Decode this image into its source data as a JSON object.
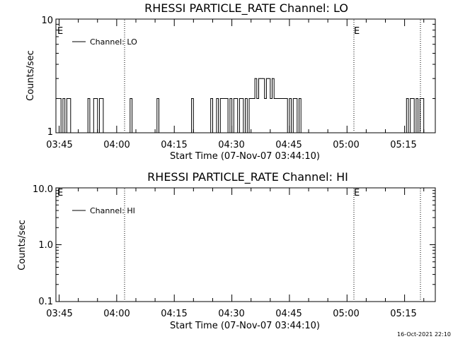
{
  "chart_data": [
    {
      "type": "line",
      "title": "RHESSI PARTICLE_RATE Channel: LO",
      "xlabel": "Start Time (07-Nov-07 03:44:10)",
      "ylabel": "Counts/sec",
      "yscale": "log",
      "ylim": [
        1,
        10
      ],
      "xlim": [
        "03:44:10",
        "05:23:00"
      ],
      "x_tick_labels": [
        "03:45",
        "04:00",
        "04:15",
        "04:30",
        "04:45",
        "05:00",
        "05:15"
      ],
      "y_tick_labels": [
        "1",
        "10"
      ],
      "legend": {
        "entries": [
          "Channel: LO"
        ],
        "placement": "top-left"
      },
      "markers": [
        "E",
        "E"
      ],
      "grid": false,
      "series": [
        {
          "name": "Channel: LO",
          "x": [
            "03:45:00",
            "03:45:30",
            "03:46:00",
            "03:46:30",
            "03:47:00",
            "03:47:30",
            "03:48:00",
            "03:48:30",
            "03:49:00",
            "03:49:30",
            "03:50:00",
            "03:50:30",
            "03:51:00",
            "03:51:30",
            "03:52:00",
            "03:52:30",
            "03:53:00",
            "03:53:30",
            "03:54:00",
            "03:54:30",
            "03:55:00",
            "03:55:30",
            "03:56:00",
            "03:56:30",
            "03:57:00",
            "03:57:30",
            "03:58:00",
            "04:00:00",
            "04:03:00",
            "04:03:30",
            "04:04:00",
            "04:10:00",
            "04:10:30",
            "04:11:00",
            "04:19:00",
            "04:19:30",
            "04:20:00",
            "04:24:00",
            "04:24:30",
            "04:25:00",
            "04:26:00",
            "04:26:30",
            "04:27:00",
            "04:29:00",
            "04:29:30",
            "04:30:00",
            "04:30:30",
            "04:31:00",
            "04:31:30",
            "04:32:00",
            "04:32:30",
            "04:33:00",
            "04:33:30",
            "04:34:00",
            "04:34:30",
            "04:35:00",
            "04:35:30",
            "04:36:00",
            "04:36:30",
            "04:37:00",
            "04:37:30",
            "04:38:00",
            "04:38:30",
            "04:39:00",
            "04:39:30",
            "04:40:00",
            "04:40:30",
            "04:41:00",
            "04:41:30",
            "04:42:00",
            "04:42:30",
            "04:43:00",
            "04:43:30",
            "04:44:00",
            "04:44:30",
            "04:45:00",
            "04:45:30",
            "04:46:00",
            "04:46:30",
            "04:47:00",
            "04:47:30",
            "04:48:00",
            "05:15:00",
            "05:15:30",
            "05:16:00",
            "05:16:30",
            "05:17:00",
            "05:17:30",
            "05:18:00",
            "05:18:30",
            "05:19:00",
            "05:19:30",
            "05:20:00"
          ],
          "y": [
            2,
            1,
            2,
            1,
            2,
            2,
            1,
            1,
            1,
            1,
            1,
            1,
            1,
            1,
            1,
            2,
            1,
            1,
            2,
            2,
            1,
            2,
            2,
            1,
            1,
            1,
            1,
            1,
            1,
            2,
            1,
            1,
            2,
            1,
            1,
            2,
            1,
            1,
            2,
            1,
            2,
            1,
            2,
            1,
            2,
            1,
            2,
            2,
            1,
            2,
            2,
            1,
            2,
            1,
            2,
            2,
            2,
            3,
            2,
            3,
            3,
            3,
            2,
            3,
            3,
            2,
            3,
            2,
            2,
            2,
            2,
            2,
            2,
            2,
            1,
            2,
            1,
            2,
            2,
            1,
            2,
            1,
            1,
            2,
            1,
            2,
            2,
            1,
            2,
            1,
            2,
            2,
            1
          ]
        }
      ]
    },
    {
      "type": "line",
      "title": "RHESSI PARTICLE_RATE Channel: HI",
      "xlabel": "Start Time (07-Nov-07 03:44:10)",
      "ylabel": "Counts/sec",
      "yscale": "log",
      "ylim": [
        0.1,
        10
      ],
      "xlim": [
        "03:44:10",
        "05:23:00"
      ],
      "x_tick_labels": [
        "03:45",
        "04:00",
        "04:15",
        "04:30",
        "04:45",
        "05:00",
        "05:15"
      ],
      "y_tick_labels": [
        "0.1",
        "1.0",
        "10.0"
      ],
      "legend": {
        "entries": [
          "Channel: HI"
        ],
        "placement": "top-left"
      },
      "markers": [
        "E",
        "E"
      ],
      "grid": false,
      "series": [
        {
          "name": "Channel: HI",
          "x": [],
          "y": []
        }
      ]
    }
  ],
  "footer": {
    "timestamp": "16-Oct-2021 22:10"
  }
}
